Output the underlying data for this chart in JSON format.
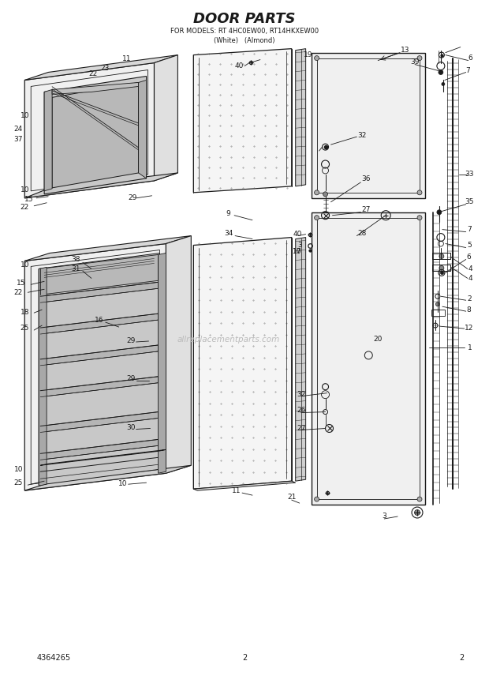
{
  "title": "DOOR PARTS",
  "subtitle1": "FOR MODELS: RT 4HC0EW00, RT14HKXEW00",
  "subtitle2": "(White)   (Almond)",
  "doc_number": "4364265",
  "page_number": "2",
  "background_color": "#ffffff",
  "line_color": "#1a1a1a",
  "watermark": "allreplacementparts.com",
  "title_size": 13,
  "subtitle_size": 6.0,
  "label_size": 6.5,
  "footer_size": 7
}
